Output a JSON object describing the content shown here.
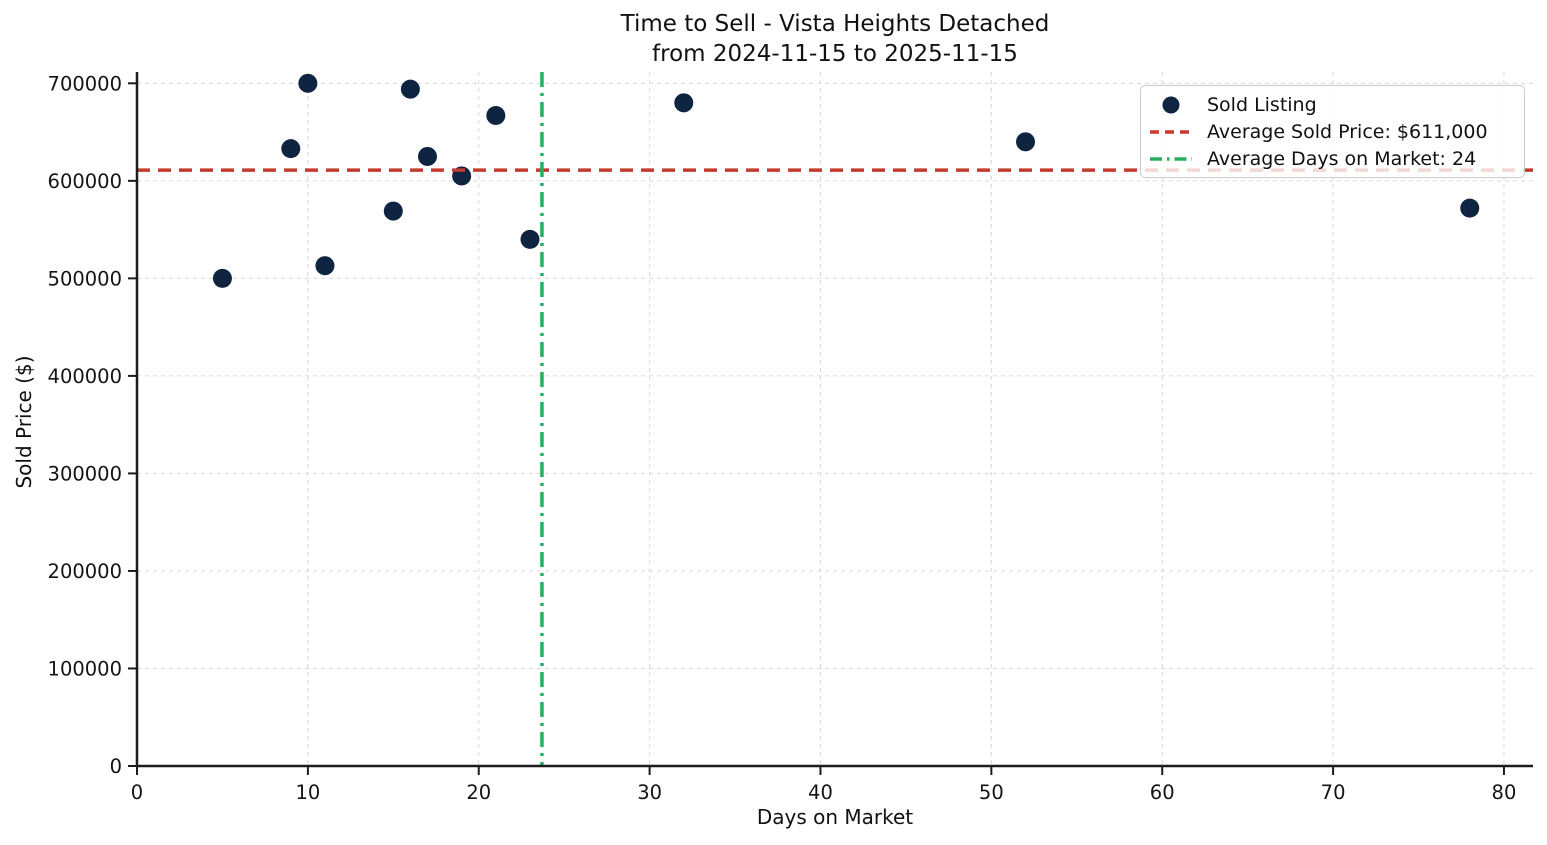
{
  "figure": {
    "title_line1": "Time to Sell - Vista Heights Detached",
    "title_line2": "from 2024-11-15 to 2025-11-15",
    "xlabel": "Days on Market",
    "ylabel": "Sold Price ($)"
  },
  "legend": {
    "items": [
      {
        "label": "Sold Listing",
        "marker": "dot-marker"
      },
      {
        "label": "Average Sold Price: $611,000",
        "marker": "dashed-line-marker"
      },
      {
        "label": "Average Days on Market: 24",
        "marker": "dashdot-line-marker"
      }
    ]
  },
  "chart_data": {
    "type": "scatter",
    "title": "Time to Sell - Vista Heights Detached from 2024-11-15 to 2025-11-15",
    "xlabel": "Days on Market",
    "ylabel": "Sold Price ($)",
    "xlim": [
      0,
      81.7
    ],
    "ylim": [
      0,
      711600
    ],
    "xticks": [
      0,
      10,
      20,
      30,
      40,
      50,
      60,
      70,
      80
    ],
    "yticks": [
      0,
      100000,
      200000,
      300000,
      400000,
      500000,
      600000,
      700000
    ],
    "grid": true,
    "legend_position": "upper right",
    "series": [
      {
        "name": "Sold Listing",
        "type": "scatter",
        "x": [
          5,
          9,
          10,
          11,
          15,
          16,
          17,
          19,
          21,
          23,
          32,
          52,
          78
        ],
        "y": [
          500000,
          633000,
          700000,
          513000,
          569000,
          694000,
          625000,
          605000,
          667000,
          540000,
          680000,
          640000,
          572000
        ]
      },
      {
        "name": "Average Sold Price: $611,000",
        "type": "hline",
        "value": 611000,
        "style": "dashed"
      },
      {
        "name": "Average Days on Market: 24",
        "type": "vline",
        "value": 23.7,
        "style": "dashdot"
      }
    ],
    "colors": {
      "dot": "#0e2440",
      "avg_price_line": "#c43c2e",
      "avg_days_line": "#27ae60",
      "grid": "#d8d8d8",
      "spine": "#1c1c1c"
    }
  }
}
